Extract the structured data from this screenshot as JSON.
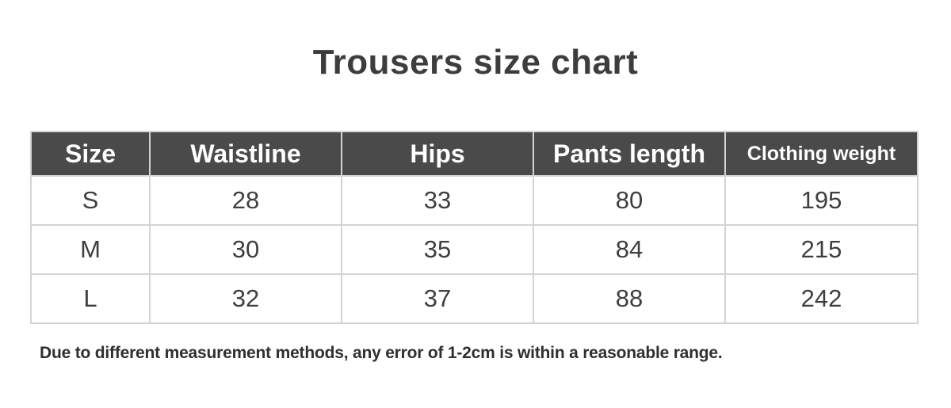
{
  "page": {
    "title": "Trousers size chart",
    "footnote": "Due to different measurement methods, any error of 1-2cm is within a reasonable range."
  },
  "colors": {
    "header_bg": "#4a4a4a",
    "header_text": "#ffffff",
    "body_text": "#3f3f3f",
    "border": "#d4d4d4",
    "title_text": "#3d3d3d",
    "background": "#ffffff"
  },
  "chart_data": {
    "type": "table",
    "title": "Trousers size chart",
    "columns": [
      "Size",
      "Waistline",
      "Hips",
      "Pants length",
      "Clothing weight"
    ],
    "rows": [
      [
        "S",
        "28",
        "33",
        "80",
        "195"
      ],
      [
        "M",
        "30",
        "35",
        "84",
        "215"
      ],
      [
        "L",
        "32",
        "37",
        "88",
        "242"
      ]
    ],
    "footnote": "Due to different measurement methods, any error of 1-2cm is within a reasonable range."
  }
}
